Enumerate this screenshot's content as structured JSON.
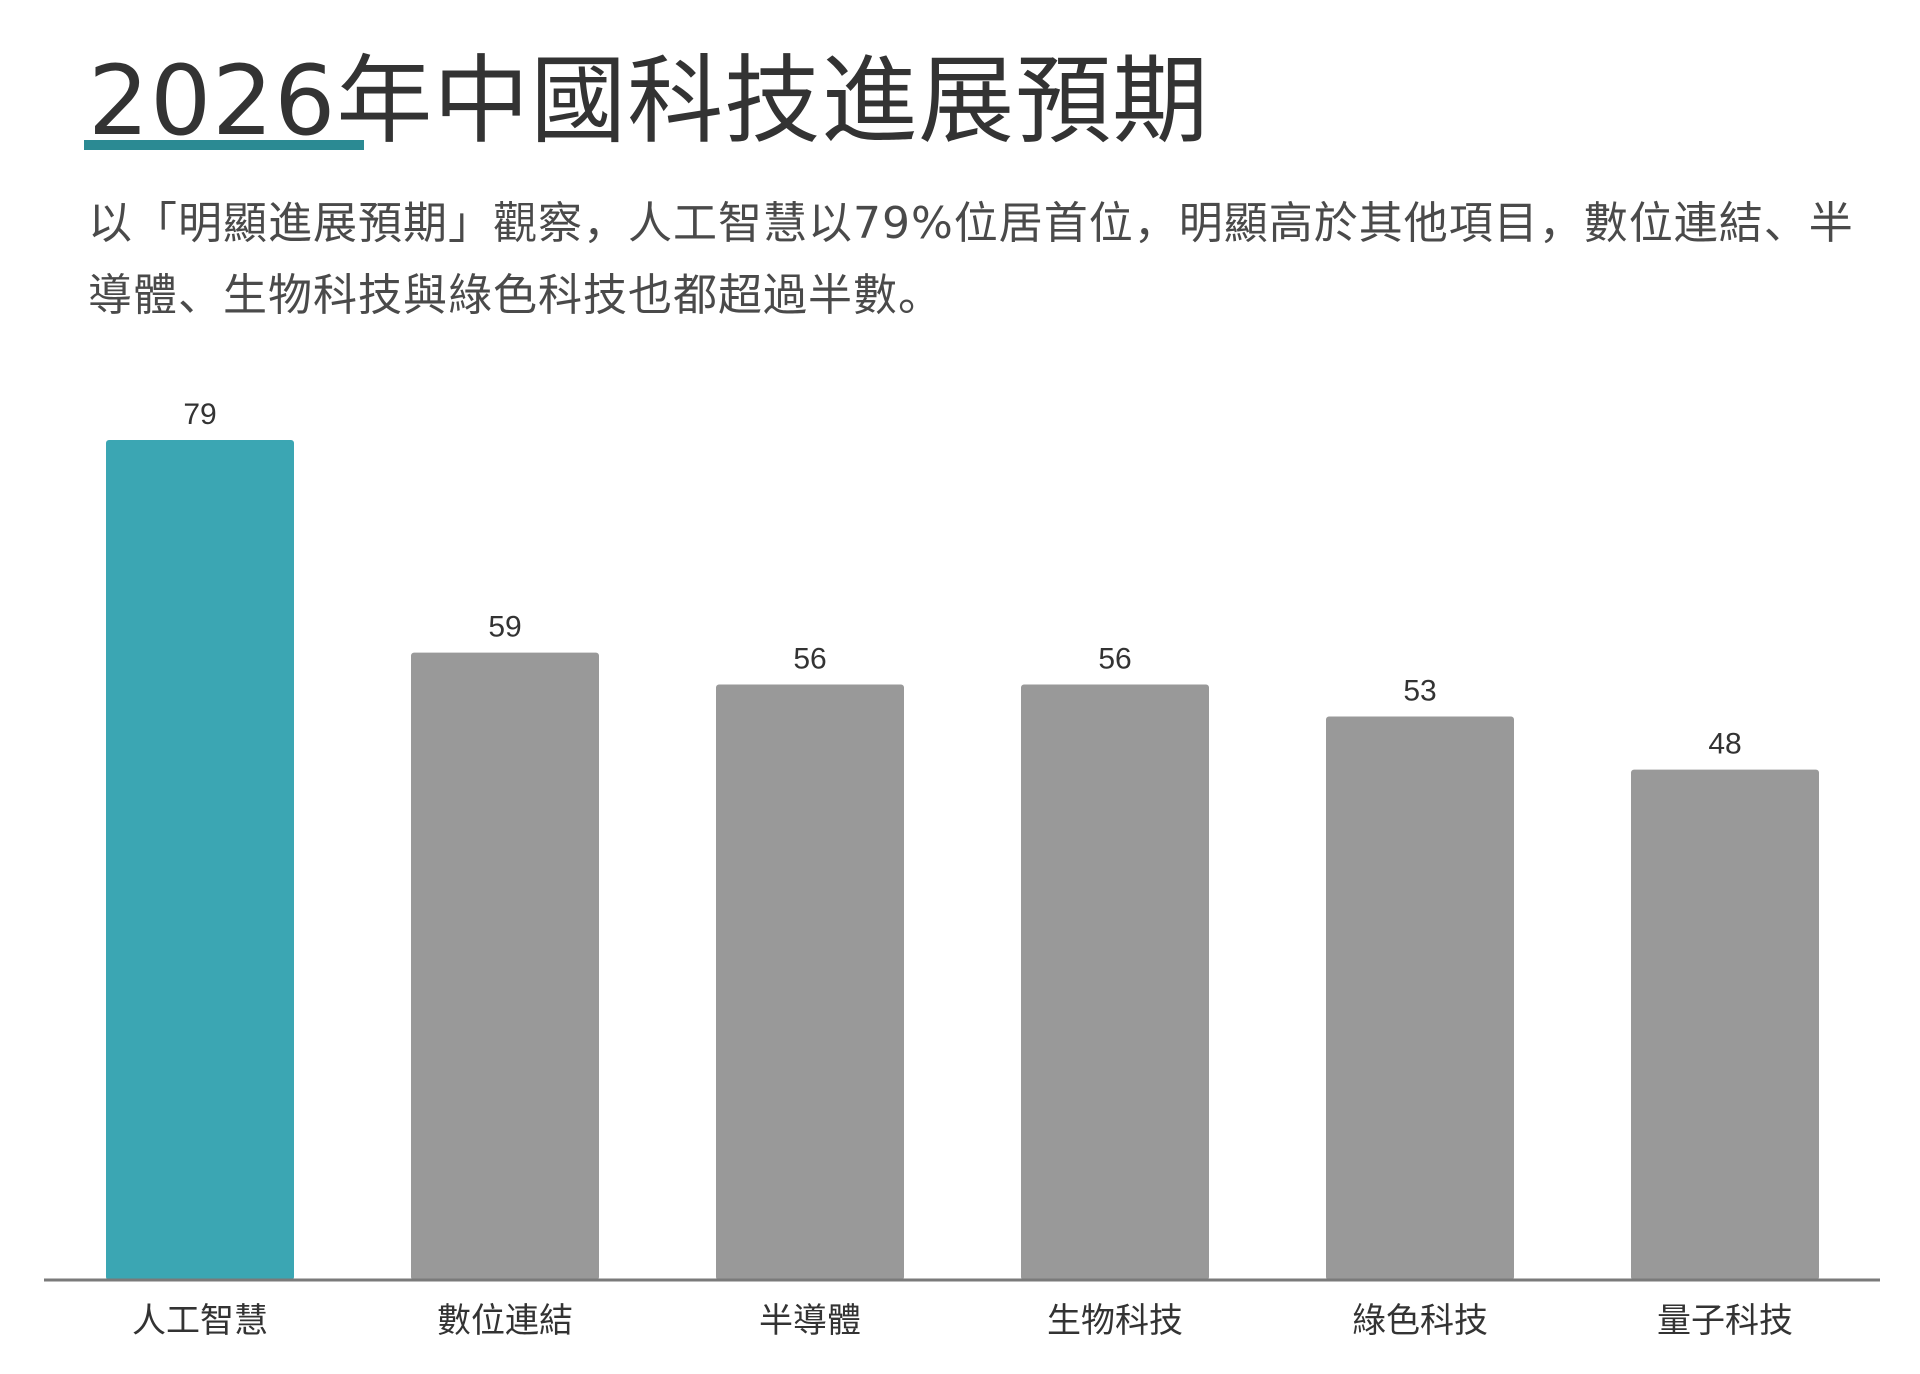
{
  "header": {
    "title": "2026年中國科技進展預期",
    "subtitle": "以「明顯進展預期」觀察，人工智慧以79%位居首位，明顯高於其他項目，數位連結、半導體、生物科技與綠色科技也都超過半數。"
  },
  "colors": {
    "highlight": "#3ba6b3",
    "bar": "#999999",
    "accent_underline": "#2b8a93",
    "axis": "#7a7a7a"
  },
  "chart_data": {
    "type": "bar",
    "categories": [
      "人工智慧",
      "數位連結",
      "半導體",
      "生物科技",
      "綠色科技",
      "量子科技"
    ],
    "values": [
      79,
      59,
      56,
      56,
      53,
      48
    ],
    "highlight_index": 0,
    "title": "",
    "xlabel": "",
    "ylabel": "",
    "ylim": [
      0,
      79
    ],
    "grid": false,
    "legend": "none"
  }
}
